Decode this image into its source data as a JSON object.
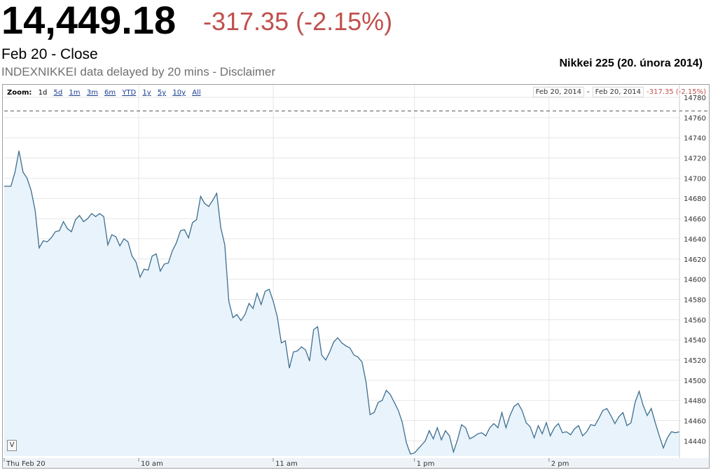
{
  "header": {
    "price": "14,449.18",
    "change": "-317.35 (-2.15%)",
    "close_label": "Feb 20 - Close",
    "source_line": "INDEXNIKKEI data delayed by 20 mins - Disclaimer",
    "side_title": "Nikkei 225 (20. února 2014)"
  },
  "toolbar": {
    "zoom_label": "Zoom:",
    "zoom_options": [
      "1d",
      "5d",
      "1m",
      "3m",
      "6m",
      "YTD",
      "1y",
      "5y",
      "10y",
      "All"
    ],
    "range_start": "Feb 20, 2014",
    "range_sep": "-",
    "range_end": "Feb 20, 2014",
    "range_change": "-317.35 (-2.15%)",
    "v_button": "V"
  },
  "colors": {
    "line": "#3d6e8f",
    "fill": "#e8f3fb",
    "change": "#c0504d"
  },
  "chart_data": {
    "type": "area",
    "reference_line": 14766.53,
    "ylim": [
      14425,
      14780
    ],
    "y_ticks": [
      14440,
      14460,
      14480,
      14500,
      14520,
      14540,
      14560,
      14580,
      14600,
      14620,
      14640,
      14660,
      14680,
      14700,
      14720,
      14740,
      14760,
      14780
    ],
    "x_ticks": [
      {
        "label": "Thu Feb 20",
        "t": 9.0
      },
      {
        "label": "10 am",
        "t": 10.0
      },
      {
        "label": "11 am",
        "t": 11.0
      },
      {
        "label": "1 pm",
        "t": 13.0
      },
      {
        "label": "2 pm",
        "t": 14.0
      }
    ],
    "points": [
      [
        9.0,
        14692
      ],
      [
        9.05,
        14692
      ],
      [
        9.08,
        14706
      ],
      [
        9.11,
        14727
      ],
      [
        9.14,
        14706
      ],
      [
        9.17,
        14700
      ],
      [
        9.2,
        14688
      ],
      [
        9.23,
        14668
      ],
      [
        9.26,
        14631
      ],
      [
        9.29,
        14638
      ],
      [
        9.32,
        14637
      ],
      [
        9.35,
        14641
      ],
      [
        9.38,
        14647
      ],
      [
        9.41,
        14648
      ],
      [
        9.44,
        14657
      ],
      [
        9.47,
        14650
      ],
      [
        9.5,
        14647
      ],
      [
        9.53,
        14659
      ],
      [
        9.56,
        14663
      ],
      [
        9.59,
        14657
      ],
      [
        9.62,
        14660
      ],
      [
        9.65,
        14665
      ],
      [
        9.68,
        14662
      ],
      [
        9.71,
        14665
      ],
      [
        9.74,
        14662
      ],
      [
        9.77,
        14634
      ],
      [
        9.8,
        14644
      ],
      [
        9.83,
        14642
      ],
      [
        9.86,
        14633
      ],
      [
        9.89,
        14640
      ],
      [
        9.92,
        14637
      ],
      [
        9.95,
        14623
      ],
      [
        9.98,
        14617
      ],
      [
        10.01,
        14602
      ],
      [
        10.04,
        14610
      ],
      [
        10.07,
        14609
      ],
      [
        10.1,
        14623
      ],
      [
        10.13,
        14625
      ],
      [
        10.16,
        14608
      ],
      [
        10.19,
        14615
      ],
      [
        10.22,
        14616
      ],
      [
        10.25,
        14628
      ],
      [
        10.28,
        14636
      ],
      [
        10.31,
        14648
      ],
      [
        10.34,
        14649
      ],
      [
        10.37,
        14641
      ],
      [
        10.4,
        14656
      ],
      [
        10.43,
        14659
      ],
      [
        10.46,
        14682
      ],
      [
        10.49,
        14675
      ],
      [
        10.52,
        14672
      ],
      [
        10.55,
        14678
      ],
      [
        10.58,
        14685
      ],
      [
        10.61,
        14651
      ],
      [
        10.64,
        14634
      ],
      [
        10.67,
        14578
      ],
      [
        10.7,
        14562
      ],
      [
        10.73,
        14565
      ],
      [
        10.76,
        14559
      ],
      [
        10.79,
        14565
      ],
      [
        10.82,
        14576
      ],
      [
        10.85,
        14571
      ],
      [
        10.88,
        14586
      ],
      [
        10.91,
        14575
      ],
      [
        10.94,
        14588
      ],
      [
        10.97,
        14590
      ],
      [
        11.0,
        14578
      ],
      [
        11.03,
        14563
      ],
      [
        11.06,
        14537
      ],
      [
        11.09,
        14539
      ],
      [
        11.12,
        14512
      ],
      [
        11.15,
        14528
      ],
      [
        11.18,
        14529
      ],
      [
        11.21,
        14533
      ],
      [
        11.24,
        14530
      ],
      [
        11.27,
        14519
      ],
      [
        11.3,
        14550
      ],
      [
        11.33,
        14553
      ],
      [
        11.36,
        14525
      ],
      [
        11.39,
        14520
      ],
      [
        11.42,
        14528
      ],
      [
        11.45,
        14538
      ],
      [
        11.48,
        14542
      ],
      [
        11.51,
        14537
      ],
      [
        11.54,
        14534
      ],
      [
        11.57,
        14532
      ],
      [
        11.6,
        14525
      ],
      [
        11.63,
        14523
      ],
      [
        11.66,
        14518
      ],
      [
        11.69,
        14498
      ],
      [
        11.72,
        14466
      ],
      [
        11.75,
        14468
      ],
      [
        11.78,
        14478
      ],
      [
        11.81,
        14480
      ],
      [
        11.84,
        14490
      ],
      [
        11.87,
        14486
      ],
      [
        11.9,
        14478
      ],
      [
        11.93,
        14470
      ],
      [
        11.96,
        14458
      ],
      [
        11.99,
        14438
      ],
      [
        12.02,
        14427
      ],
      [
        12.05,
        14428
      ],
      [
        13.08,
        14440
      ],
      [
        13.11,
        14450
      ],
      [
        13.14,
        14442
      ],
      [
        13.17,
        14453
      ],
      [
        13.2,
        14441
      ],
      [
        13.23,
        14450
      ],
      [
        13.26,
        14445
      ],
      [
        13.29,
        14429
      ],
      [
        13.32,
        14441
      ],
      [
        13.35,
        14456
      ],
      [
        13.38,
        14453
      ],
      [
        13.41,
        14442
      ],
      [
        13.44,
        14444
      ],
      [
        13.47,
        14447
      ],
      [
        13.5,
        14448
      ],
      [
        13.53,
        14445
      ],
      [
        13.56,
        14453
      ],
      [
        13.59,
        14457
      ],
      [
        13.62,
        14453
      ],
      [
        13.65,
        14468
      ],
      [
        13.68,
        14453
      ],
      [
        13.71,
        14465
      ],
      [
        13.74,
        14474
      ],
      [
        13.77,
        14477
      ],
      [
        13.8,
        14470
      ],
      [
        13.83,
        14458
      ],
      [
        13.86,
        14454
      ],
      [
        13.89,
        14443
      ],
      [
        13.92,
        14455
      ],
      [
        13.95,
        14447
      ],
      [
        13.98,
        14458
      ],
      [
        14.01,
        14445
      ],
      [
        14.04,
        14453
      ],
      [
        14.07,
        14457
      ],
      [
        14.1,
        14448
      ],
      [
        14.13,
        14449
      ],
      [
        14.16,
        14446
      ],
      [
        14.19,
        14452
      ],
      [
        14.22,
        14455
      ],
      [
        14.25,
        14445
      ],
      [
        14.28,
        14449
      ],
      [
        14.31,
        14456
      ],
      [
        14.34,
        14455
      ],
      [
        14.37,
        14462
      ],
      [
        14.4,
        14470
      ],
      [
        14.43,
        14472
      ],
      [
        14.46,
        14465
      ],
      [
        14.49,
        14457
      ],
      [
        14.52,
        14464
      ],
      [
        14.55,
        14468
      ],
      [
        14.58,
        14455
      ],
      [
        14.61,
        14458
      ],
      [
        14.64,
        14478
      ],
      [
        14.67,
        14489
      ],
      [
        14.7,
        14475
      ],
      [
        14.73,
        14465
      ],
      [
        14.76,
        14472
      ],
      [
        14.79,
        14458
      ],
      [
        14.82,
        14445
      ],
      [
        14.85,
        14433
      ],
      [
        14.88,
        14443
      ],
      [
        14.91,
        14449
      ],
      [
        14.94,
        14448
      ],
      [
        14.97,
        14449
      ]
    ]
  }
}
